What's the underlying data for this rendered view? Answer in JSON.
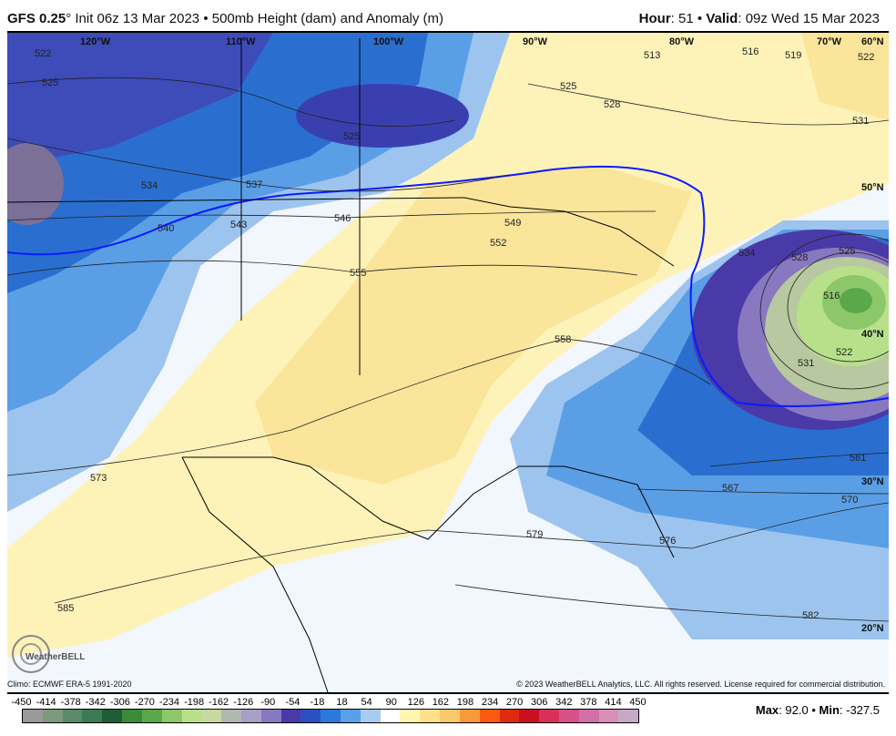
{
  "header": {
    "model": "GFS 0.25",
    "deg": "°",
    "init": "Init 06z 13 Mar 2023",
    "sep": "•",
    "product": "500mb Height (dam) and Anomaly (m)",
    "hour_label": "Hour",
    "hour": "51",
    "valid_label": "Valid",
    "valid": "09z Wed 15 Mar 2023"
  },
  "map": {
    "lon_labels": [
      "120°W",
      "110°W",
      "100°W",
      "90°W",
      "80°W",
      "70°W"
    ],
    "lat_labels": [
      "60°N",
      "50°N",
      "40°N",
      "30°N",
      "20°N"
    ],
    "contour_labels": [
      "522",
      "525",
      "534",
      "537",
      "540",
      "543",
      "546",
      "549",
      "552",
      "555",
      "558",
      "525",
      "525",
      "528",
      "513",
      "516",
      "519",
      "522",
      "531",
      "534",
      "528",
      "525",
      "516",
      "522",
      "531",
      "561",
      "567",
      "570",
      "573",
      "576",
      "579",
      "582",
      "585"
    ],
    "logo": "WeatherBELL",
    "colors": {
      "trough": "#3a3fb0",
      "ridge": "#fbe9a0",
      "low_center": "#7fbf5a",
      "line_540": "#0a1aff"
    }
  },
  "footer": {
    "climo": "Climo: ECMWF ERA-5 1991-2020",
    "copyright": "© 2023 WeatherBELL Analytics, LLC. All rights reserved. License required for commercial distribution.",
    "ticks": [
      "-450",
      "-414",
      "-378",
      "-342",
      "-306",
      "-270",
      "-234",
      "-198",
      "-162",
      "-126",
      "-90",
      "-54",
      "-18",
      "18",
      "54",
      "90",
      "126",
      "162",
      "198",
      "234",
      "270",
      "306",
      "342",
      "378",
      "414",
      "450"
    ],
    "colorbar": [
      "#9a9a9a",
      "#7d9a7d",
      "#5a8a6a",
      "#3a7a55",
      "#1f5e35",
      "#3a8a3a",
      "#5aa84a",
      "#8cc86a",
      "#b8e08a",
      "#c8d8a0",
      "#b0b8b0",
      "#a8a0c8",
      "#8878c0",
      "#4a3aa8",
      "#2a50c0",
      "#2a78d8",
      "#5aa0e8",
      "#a8ccf0",
      "#ffffff",
      "#fff6b0",
      "#fde08a",
      "#fbc86a",
      "#f89a3a",
      "#f85a10",
      "#e02a10",
      "#c81020",
      "#d8305a",
      "#d8508a",
      "#d070a8",
      "#d890b8",
      "#c8a8c8"
    ],
    "max_label": "Max",
    "max": "92.0",
    "min_label": "Min",
    "min": "-327.5"
  }
}
